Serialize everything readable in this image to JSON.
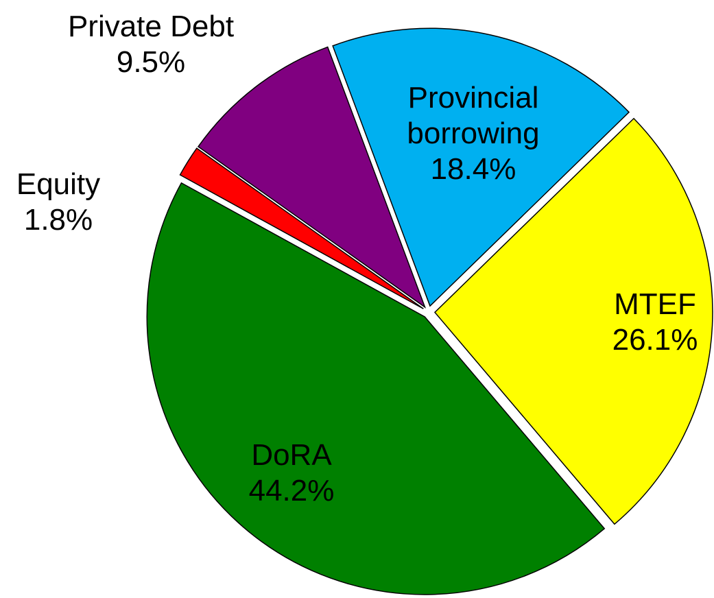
{
  "chart_data": {
    "type": "pie",
    "categories": [
      "Provincial borrowing",
      "MTEF",
      "DoRA",
      "Equity",
      "Private Debt"
    ],
    "values": [
      18.4,
      26.1,
      44.2,
      1.8,
      9.5
    ],
    "value_labels": [
      "18.4%",
      "26.1%",
      "44.2%",
      "1.8%",
      "9.5%"
    ],
    "colors": [
      "#00b0f0",
      "#ffff00",
      "#008000",
      "#ff0000",
      "#800080"
    ]
  }
}
